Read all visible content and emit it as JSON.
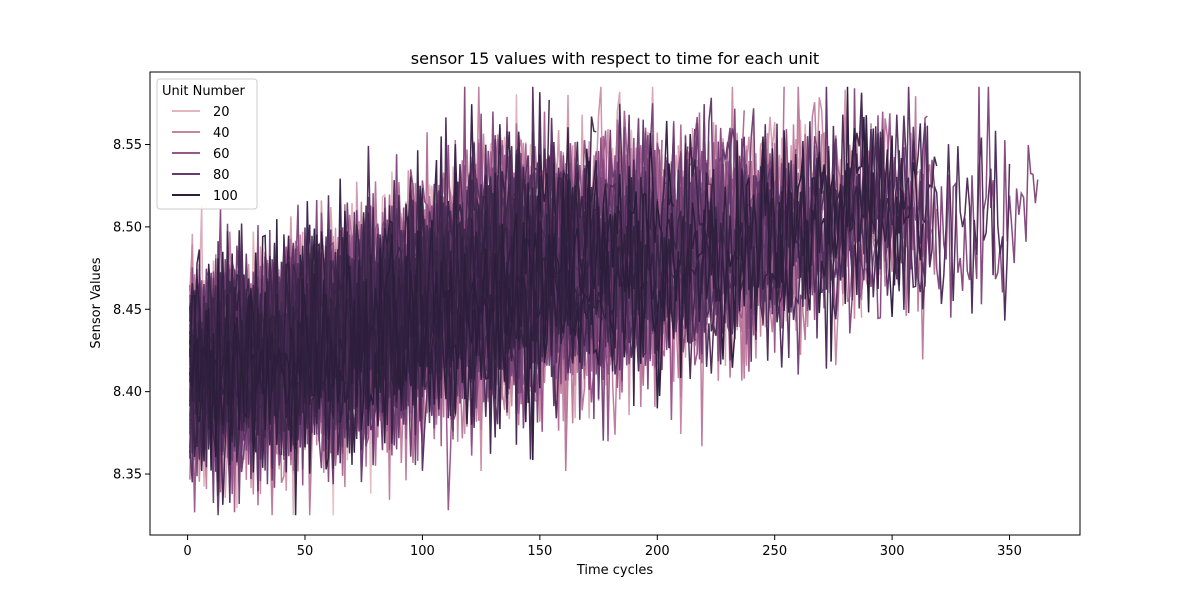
{
  "chart_data": {
    "type": "line",
    "title": "sensor 15 values with respect to time for each unit",
    "xlabel": "Time cycles",
    "ylabel": "Sensor Values",
    "xlim": [
      -16,
      380
    ],
    "ylim": [
      8.313,
      8.594
    ],
    "xticks": [
      0,
      50,
      100,
      150,
      200,
      250,
      300,
      350
    ],
    "yticks": [
      8.35,
      8.4,
      8.45,
      8.5,
      8.55
    ],
    "ytick_labels": [
      "8.35",
      "8.40",
      "8.45",
      "8.50",
      "8.55"
    ],
    "grid": false,
    "legend": {
      "title": "Unit Number",
      "placement": "top-left",
      "entries": [
        {
          "label": "20",
          "color": "#e3b5be"
        },
        {
          "label": "40",
          "color": "#c9829e"
        },
        {
          "label": "60",
          "color": "#9a5689"
        },
        {
          "label": "80",
          "color": "#653a6d"
        },
        {
          "label": "100",
          "color": "#2e1e3b"
        }
      ]
    },
    "series_summary": {
      "unit_count": 100,
      "hue_range": [
        1,
        100
      ],
      "start_mean": 8.415,
      "end_mean": 8.515,
      "noise_sd": 0.028,
      "max_cycle": 362,
      "observed_min": 8.325,
      "observed_max": 8.585
    },
    "series": []
  }
}
